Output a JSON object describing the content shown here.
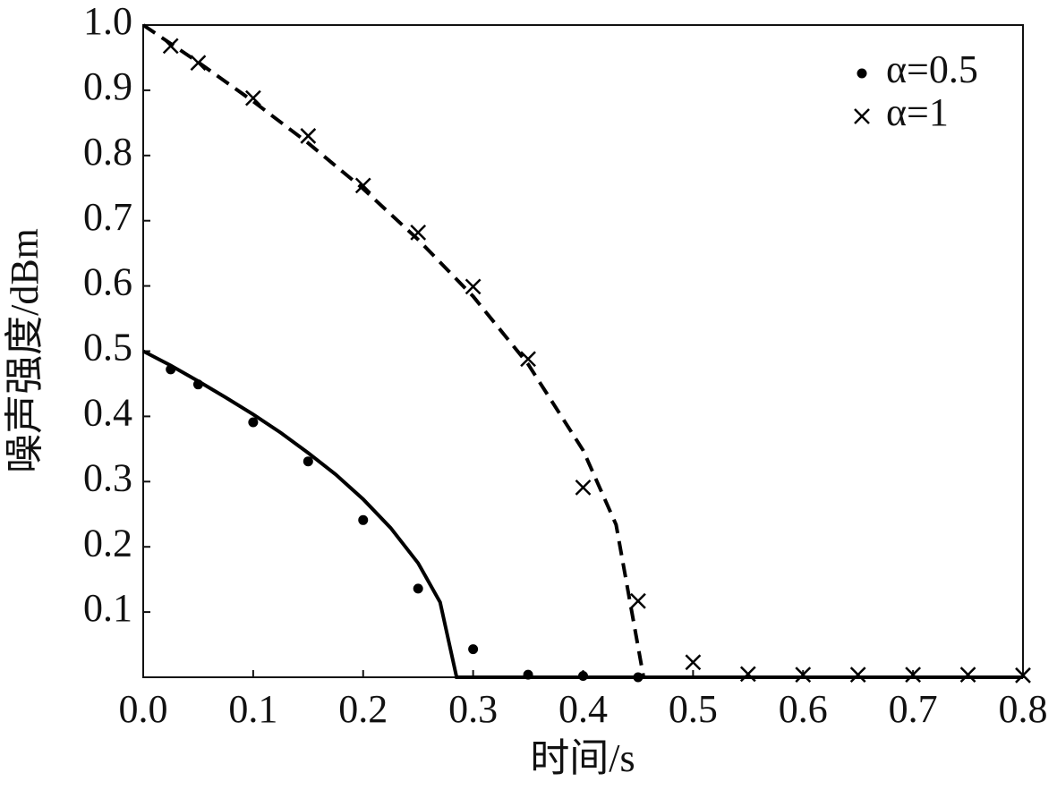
{
  "chart_data": {
    "type": "scatter",
    "xlabel": "时间/s",
    "ylabel": "噪声强度/dBm",
    "xlim": [
      0,
      0.8
    ],
    "ylim": [
      0,
      1
    ],
    "xticks": [
      {
        "value": 0,
        "label": "0.0"
      },
      0.1,
      0.2,
      0.3,
      0.4,
      0.5,
      0.6,
      0.7,
      0.8
    ],
    "yticks": [
      0.1,
      0.2,
      0.3,
      0.4,
      0.5,
      0.6,
      0.7,
      0.8,
      0.9,
      {
        "value": 1,
        "label": "1.0"
      }
    ],
    "legend": "upper-right",
    "series": [
      {
        "name": "α=0.5",
        "marker": "dot",
        "color": "#000000",
        "x": [
          0.025,
          0.05,
          0.1,
          0.15,
          0.2,
          0.25,
          0.3,
          0.35,
          0.4,
          0.45
        ],
        "values": [
          0.472,
          0.449,
          0.391,
          0.331,
          0.241,
          0.136,
          0.043,
          0.004,
          0.002,
          0
        ]
      },
      {
        "name": "α=1",
        "marker": "cross",
        "color": "#000000",
        "x": [
          0.025,
          0.05,
          0.1,
          0.15,
          0.2,
          0.25,
          0.3,
          0.35,
          0.4,
          0.45,
          0.5,
          0.55,
          0.6,
          0.65,
          0.7,
          0.75,
          0.8
        ],
        "values": [
          0.968,
          0.942,
          0.888,
          0.83,
          0.754,
          0.682,
          0.599,
          0.488,
          0.291,
          0.117,
          0.023,
          0.005,
          0.004,
          0.004,
          0.004,
          0.004,
          0.003
        ]
      }
    ],
    "curves": [
      {
        "linestyle": "solid",
        "color": "#000000",
        "x": [
          0,
          0.025,
          0.05,
          0.075,
          0.1,
          0.125,
          0.15,
          0.175,
          0.2,
          0.225,
          0.25,
          0.27,
          0.285,
          0.8
        ],
        "values": [
          0.5,
          0.478,
          0.454,
          0.429,
          0.403,
          0.375,
          0.344,
          0.311,
          0.273,
          0.229,
          0.175,
          0.115,
          0,
          0
        ]
      },
      {
        "linestyle": "dashed",
        "color": "#000000",
        "x": [
          0,
          0.05,
          0.1,
          0.15,
          0.2,
          0.25,
          0.3,
          0.35,
          0.4,
          0.43,
          0.455,
          0.8
        ],
        "values": [
          1,
          0.943,
          0.883,
          0.819,
          0.749,
          0.671,
          0.584,
          0.48,
          0.348,
          0.234,
          0,
          0
        ]
      }
    ]
  }
}
